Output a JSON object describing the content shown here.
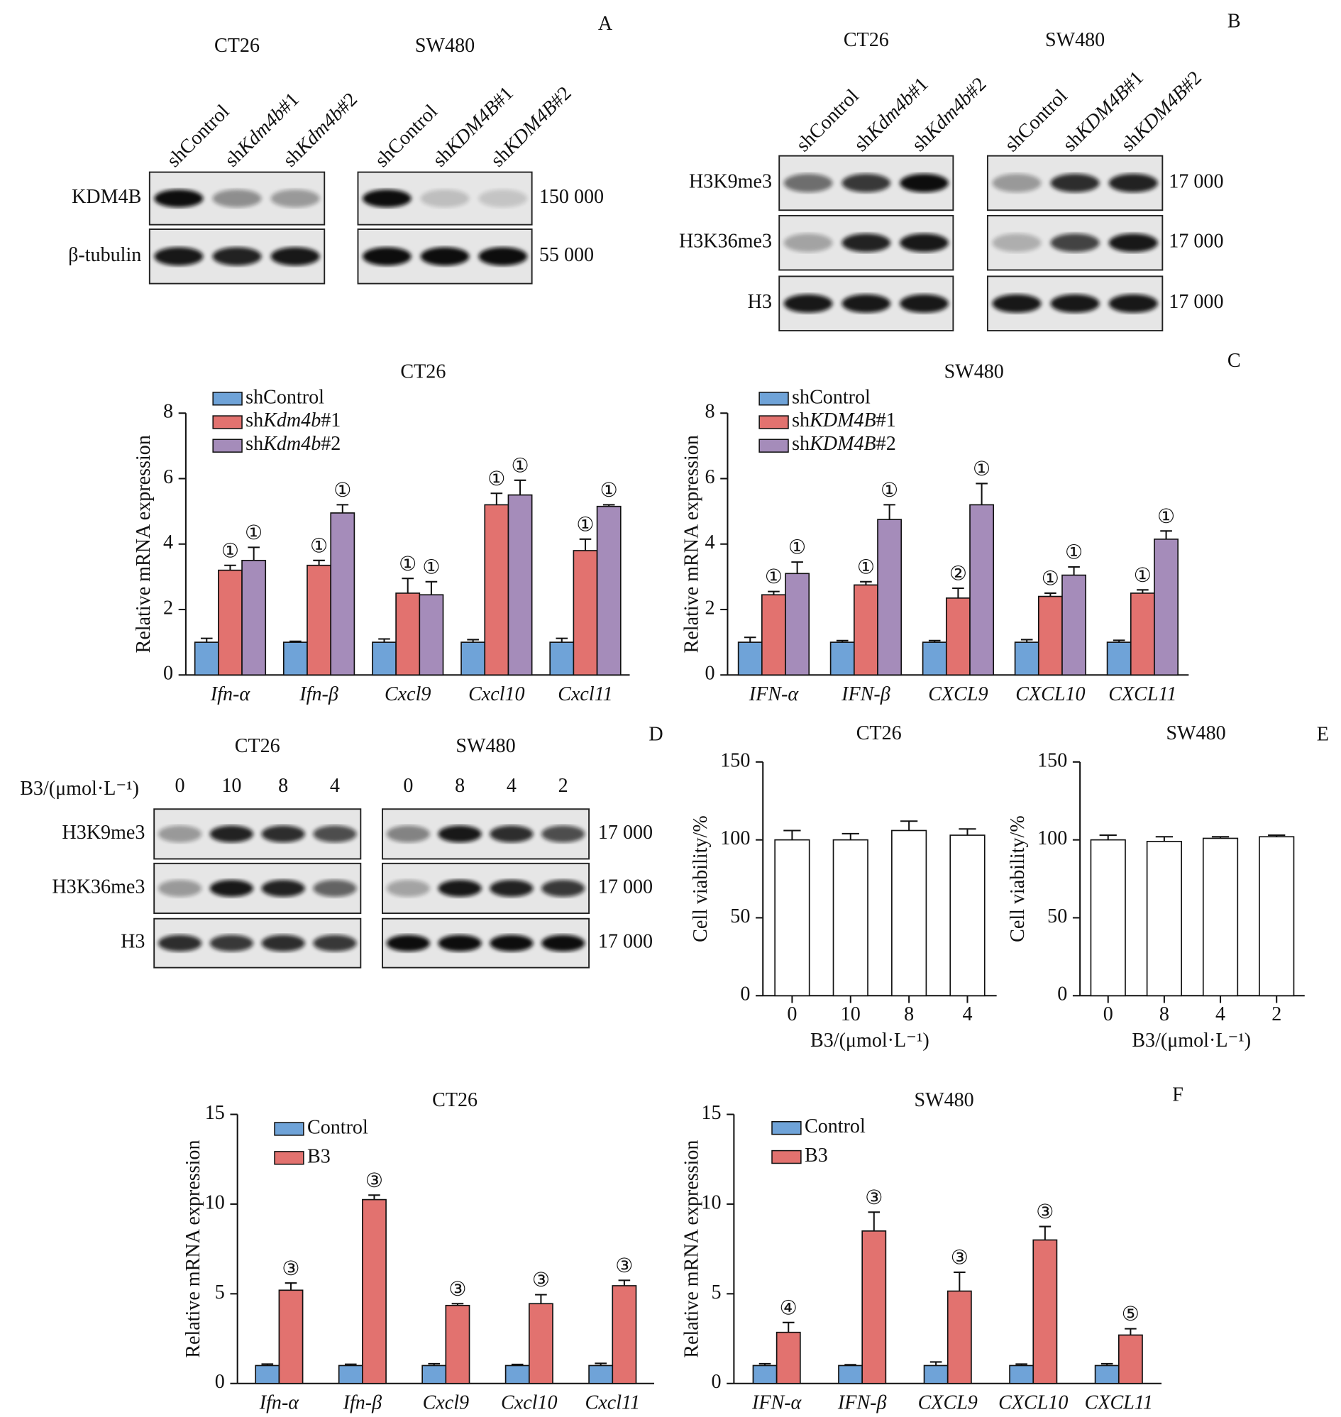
{
  "panel_labels": [
    "A",
    "B",
    "C",
    "D",
    "E",
    "F"
  ],
  "blots": [
    {
      "groups": [
        {
          "cell_line": "CT26",
          "lanes": [
            "shControl",
            "shKdm4b#1",
            "shKdm4b#2"
          ]
        },
        {
          "cell_line": "SW480",
          "lanes": [
            "shControl",
            "shKDM4B#1",
            "shKDM4B#2"
          ]
        }
      ],
      "rows": [
        {
          "label": "KDM4B",
          "size": "150 000"
        },
        {
          "label": "β-tubulin",
          "size": "55 000"
        }
      ]
    },
    {
      "groups": [
        {
          "cell_line": "CT26",
          "lanes": [
            "shControl",
            "shKdm4b#1",
            "shKdm4b#2"
          ]
        },
        {
          "cell_line": "SW480",
          "lanes": [
            "shControl",
            "shKDM4B#1",
            "shKDM4B#2"
          ]
        }
      ],
      "rows": [
        {
          "label": "H3K9me3",
          "size": "17 000"
        },
        {
          "label": "H3K36me3",
          "size": "17 000"
        },
        {
          "label": "H3",
          "size": "17 000"
        }
      ]
    },
    {
      "treatment": "B3/(μmol·L⁻¹)",
      "groups": [
        {
          "cell_line": "CT26",
          "lanes": [
            "0",
            "10",
            "8",
            "4"
          ]
        },
        {
          "cell_line": "SW480",
          "lanes": [
            "0",
            "8",
            "4",
            "2"
          ]
        }
      ],
      "rows": [
        {
          "label": "H3K9me3",
          "size": "17 000"
        },
        {
          "label": "H3K36me3",
          "size": "17 000"
        },
        {
          "label": "H3",
          "size": "17 000"
        }
      ]
    }
  ],
  "chart_data": [
    {
      "type": "bar",
      "title": "CT26",
      "ylabel": "Relative mRNA expression",
      "categories": [
        "Ifn-α",
        "Ifn-β",
        "Cxcl9",
        "Cxcl10",
        "Cxcl11"
      ],
      "series": [
        {
          "name": "shControl",
          "color": "#6fa3d8",
          "values": [
            1,
            1,
            1,
            1,
            1
          ],
          "errors": [
            0.12,
            0.03,
            0.1,
            0.08,
            0.12
          ],
          "markers": [
            null,
            null,
            null,
            null,
            null
          ]
        },
        {
          "name": "shKdm4b#1",
          "color": "#e2726f",
          "values": [
            3.2,
            3.35,
            2.5,
            5.2,
            3.8
          ],
          "errors": [
            0.15,
            0.15,
            0.45,
            0.35,
            0.35
          ],
          "markers": [
            "①",
            "①",
            "①",
            "①",
            "①"
          ]
        },
        {
          "name": "shKdm4b#2",
          "color": "#a58cba",
          "values": [
            3.5,
            4.95,
            2.45,
            5.5,
            5.15
          ],
          "errors": [
            0.4,
            0.25,
            0.4,
            0.45,
            0.05
          ],
          "markers": [
            "①",
            "①",
            "①",
            "①",
            "①"
          ]
        }
      ],
      "ylim": [
        0,
        8
      ],
      "yticks": [
        0,
        2,
        4,
        6,
        8
      ],
      "legend": "upper-left"
    },
    {
      "type": "bar",
      "title": "SW480",
      "ylabel": "Relative mRNA expression",
      "categories": [
        "IFN-α",
        "IFN-β",
        "CXCL9",
        "CXCL10",
        "CXCL11"
      ],
      "series": [
        {
          "name": "shControl",
          "color": "#6fa3d8",
          "values": [
            1,
            1,
            1,
            1,
            1
          ],
          "errors": [
            0.15,
            0.05,
            0.05,
            0.08,
            0.06
          ],
          "markers": [
            null,
            null,
            null,
            null,
            null
          ]
        },
        {
          "name": "shKDM4B#1",
          "color": "#e2726f",
          "values": [
            2.45,
            2.75,
            2.35,
            2.4,
            2.5
          ],
          "errors": [
            0.1,
            0.1,
            0.3,
            0.1,
            0.1
          ],
          "markers": [
            "①",
            "①",
            "②",
            "①",
            "①"
          ]
        },
        {
          "name": "shKDM4B#2",
          "color": "#a58cba",
          "values": [
            3.1,
            4.75,
            5.2,
            3.05,
            4.15
          ],
          "errors": [
            0.35,
            0.45,
            0.65,
            0.25,
            0.25
          ],
          "markers": [
            "①",
            "①",
            "①",
            "①",
            "①"
          ]
        }
      ],
      "ylim": [
        0,
        8
      ],
      "yticks": [
        0,
        2,
        4,
        6,
        8
      ],
      "legend": "upper-left"
    },
    {
      "type": "bar",
      "title": "CT26",
      "ylabel": "Cell viability/%",
      "xlabel": "B3/(μmol·L⁻¹)",
      "categories": [
        "0",
        "10",
        "8",
        "4"
      ],
      "color": "#ffffff",
      "values": [
        100,
        100,
        106,
        103
      ],
      "errors": [
        6,
        4,
        6,
        4
      ],
      "ylim": [
        0,
        150
      ],
      "yticks": [
        0,
        50,
        100,
        150
      ]
    },
    {
      "type": "bar",
      "title": "SW480",
      "ylabel": "Cell viability/%",
      "xlabel": "B3/(μmol·L⁻¹)",
      "categories": [
        "0",
        "8",
        "4",
        "2"
      ],
      "color": "#ffffff",
      "values": [
        100,
        99,
        101,
        102
      ],
      "errors": [
        3,
        3,
        1,
        1
      ],
      "ylim": [
        0,
        150
      ],
      "yticks": [
        0,
        50,
        100,
        150
      ]
    },
    {
      "type": "bar",
      "title": "CT26",
      "ylabel": "Relative mRNA expression",
      "categories": [
        "Ifn-α",
        "Ifn-β",
        "Cxcl9",
        "Cxcl10",
        "Cxcl11"
      ],
      "series": [
        {
          "name": "Control",
          "color": "#6fa3d8",
          "values": [
            1,
            1,
            1,
            1,
            1
          ],
          "errors": [
            0.08,
            0.07,
            0.1,
            0.06,
            0.12
          ],
          "markers": [
            null,
            null,
            null,
            null,
            null
          ]
        },
        {
          "name": "B3",
          "color": "#e2726f",
          "values": [
            5.2,
            10.25,
            4.35,
            4.45,
            5.45
          ],
          "errors": [
            0.4,
            0.25,
            0.1,
            0.5,
            0.3
          ],
          "markers": [
            "③",
            "③",
            "③",
            "③",
            "③"
          ]
        }
      ],
      "ylim": [
        0,
        15
      ],
      "yticks": [
        0,
        5,
        10,
        15
      ],
      "legend": "upper-left"
    },
    {
      "type": "bar",
      "title": "SW480",
      "ylabel": "Relative mRNA expression",
      "categories": [
        "IFN-α",
        "IFN-β",
        "CXCL9",
        "CXCL10",
        "CXCL11"
      ],
      "series": [
        {
          "name": "Control",
          "color": "#6fa3d8",
          "values": [
            1,
            1,
            1,
            1,
            1
          ],
          "errors": [
            0.1,
            0.05,
            0.2,
            0.08,
            0.1
          ],
          "markers": [
            null,
            null,
            null,
            null,
            null
          ]
        },
        {
          "name": "B3",
          "color": "#e2726f",
          "values": [
            2.85,
            8.5,
            5.15,
            8.0,
            2.7
          ],
          "errors": [
            0.55,
            1.05,
            1.05,
            0.75,
            0.35
          ],
          "markers": [
            "④",
            "③",
            "③",
            "③",
            "⑤"
          ]
        }
      ],
      "ylim": [
        0,
        15
      ],
      "yticks": [
        0,
        5,
        10,
        15
      ],
      "legend": "upper-left"
    }
  ]
}
